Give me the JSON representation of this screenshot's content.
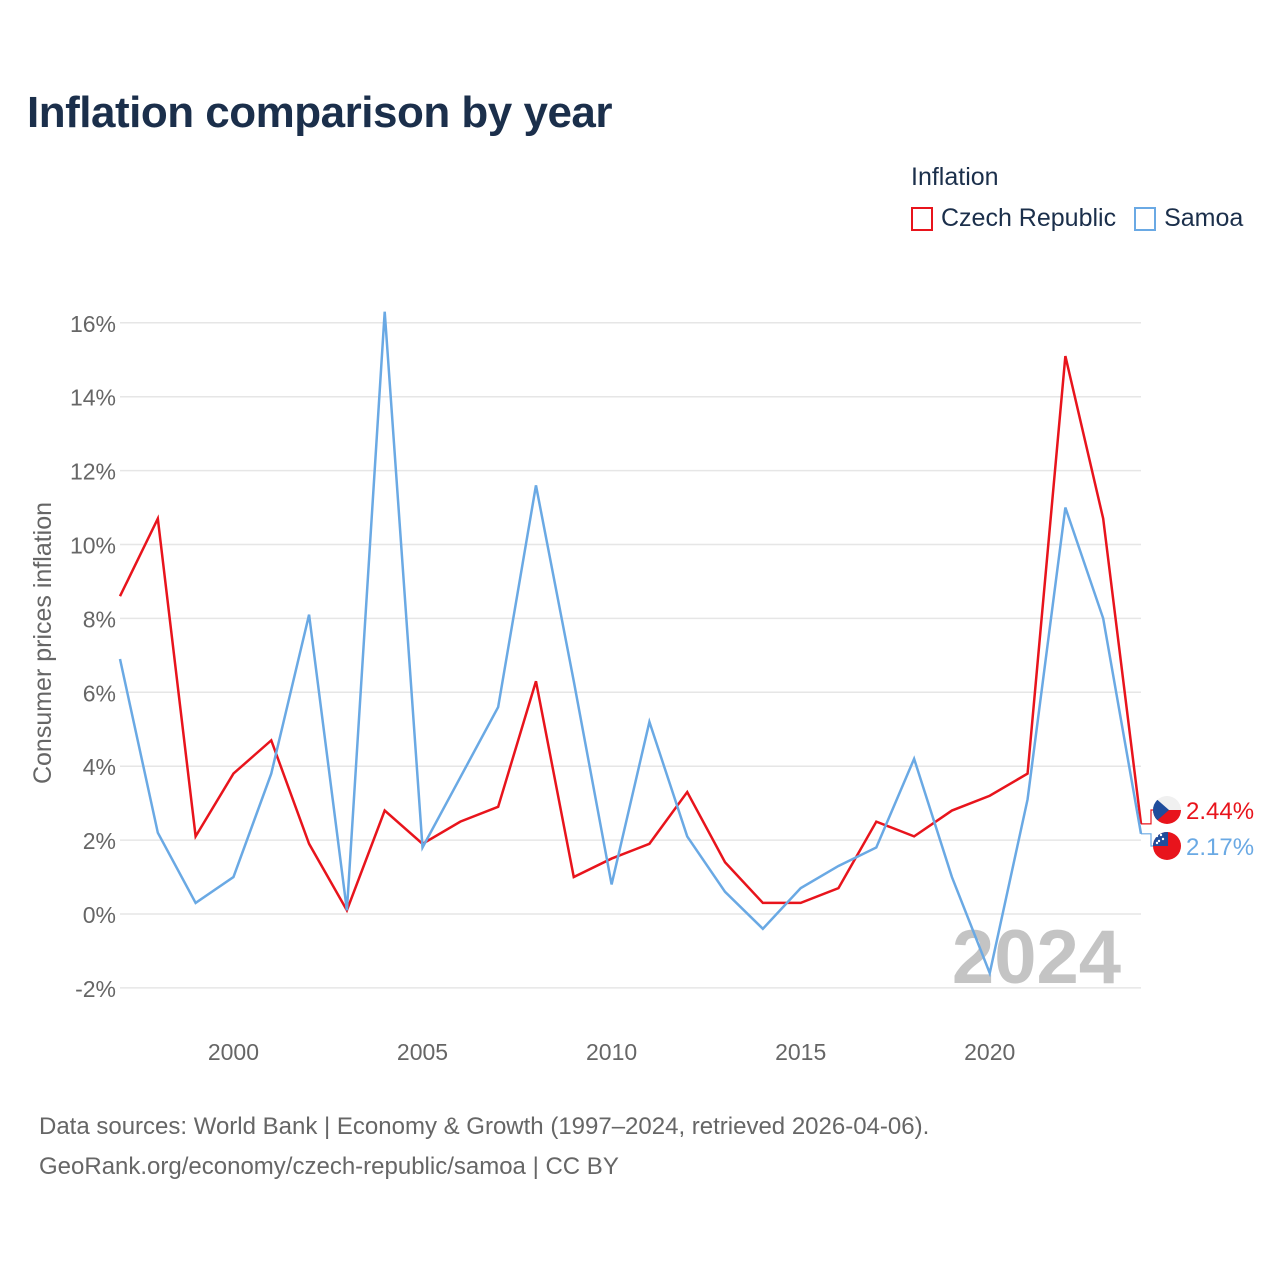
{
  "title": "Inflation comparison by year",
  "legend": {
    "title": "Inflation",
    "items": [
      {
        "label": "Czech Republic",
        "color": "#e8141c"
      },
      {
        "label": "Samoa",
        "color": "#6aa9e4"
      }
    ]
  },
  "source": {
    "line1": "Data sources: World Bank | Economy & Growth (1997–2024, retrieved 2026-04-06).",
    "line2": "GeoRank.org/economy/czech-republic/samoa | CC BY"
  },
  "chart_data": {
    "type": "line",
    "title": "Inflation comparison by year",
    "xlabel": "",
    "ylabel": "Consumer prices inflation",
    "xlim": [
      1997,
      2024
    ],
    "ylim": [
      -3,
      16.5
    ],
    "yticks": [
      -2,
      0,
      2,
      4,
      6,
      8,
      10,
      12,
      14,
      16
    ],
    "ytick_labels": [
      "-2%",
      "0%",
      "2%",
      "4%",
      "6%",
      "8%",
      "10%",
      "12%",
      "14%",
      "16%"
    ],
    "xticks": [
      2000,
      2005,
      2010,
      2015,
      2020
    ],
    "xtick_labels": [
      "2000",
      "2005",
      "2010",
      "2015",
      "2020"
    ],
    "year_watermark": "2024",
    "x": [
      1997,
      1998,
      1999,
      2000,
      2001,
      2002,
      2003,
      2004,
      2005,
      2006,
      2007,
      2008,
      2009,
      2010,
      2011,
      2012,
      2013,
      2014,
      2015,
      2016,
      2017,
      2018,
      2019,
      2020,
      2021,
      2022,
      2023,
      2024
    ],
    "series": [
      {
        "name": "Czech Republic",
        "color": "#e8141c",
        "end_label": "2.44%",
        "flag": "czech-flag-icon",
        "values": [
          8.6,
          10.7,
          2.1,
          3.8,
          4.7,
          1.9,
          0.1,
          2.8,
          1.9,
          2.5,
          2.9,
          6.3,
          1.0,
          1.5,
          1.9,
          3.3,
          1.4,
          0.3,
          0.3,
          0.7,
          2.5,
          2.1,
          2.8,
          3.2,
          3.8,
          15.1,
          10.7,
          2.44
        ]
      },
      {
        "name": "Samoa",
        "color": "#6aa9e4",
        "end_label": "2.17%",
        "flag": "samoa-flag-icon",
        "values": [
          6.9,
          2.2,
          0.3,
          1.0,
          3.8,
          8.1,
          0.1,
          16.3,
          1.8,
          3.7,
          5.6,
          11.6,
          6.3,
          0.8,
          5.2,
          2.1,
          0.6,
          -0.4,
          0.7,
          1.3,
          1.8,
          4.2,
          1.0,
          -1.6,
          3.1,
          11.0,
          8.0,
          2.17
        ]
      }
    ],
    "grid": true,
    "legend_position": "top-right"
  }
}
